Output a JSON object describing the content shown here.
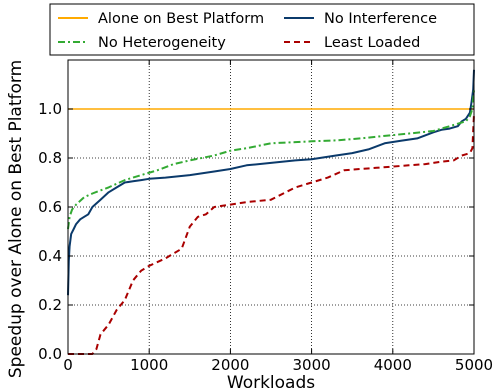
{
  "chart_data": {
    "type": "line",
    "title": "",
    "xlabel": "Workloads",
    "ylabel": "Speedup over Alone on Best Platform",
    "xlim": [
      0,
      5000
    ],
    "ylim": [
      0.0,
      1.2
    ],
    "xticks": [
      0,
      1000,
      2000,
      3000,
      4000,
      5000
    ],
    "yticks": [
      0.0,
      0.2,
      0.4,
      0.6,
      0.8,
      1.0
    ],
    "ytick_labels": [
      "0.0",
      "0.2",
      "0.4",
      "0.6",
      "0.8",
      "1.0"
    ],
    "grid": true,
    "legend": {
      "position": "top-center",
      "columns": 2
    },
    "series": [
      {
        "name": "Alone on Best Platform",
        "color": "#ffaa00",
        "style": "solid",
        "x": [
          0,
          5000
        ],
        "y": [
          1.0,
          1.0
        ]
      },
      {
        "name": "No Interference",
        "color": "#0b3a6b",
        "style": "solid",
        "x": [
          0,
          10,
          20,
          40,
          70,
          100,
          150,
          200,
          250,
          300,
          400,
          500,
          600,
          700,
          800,
          900,
          1000,
          1200,
          1500,
          1800,
          2000,
          2200,
          2500,
          2800,
          3000,
          3300,
          3500,
          3700,
          3900,
          4100,
          4300,
          4500,
          4600,
          4700,
          4800,
          4850,
          4900,
          4950,
          4970,
          4990,
          5000
        ],
        "y": [
          0.24,
          0.38,
          0.44,
          0.49,
          0.51,
          0.53,
          0.55,
          0.56,
          0.57,
          0.6,
          0.63,
          0.66,
          0.68,
          0.7,
          0.705,
          0.71,
          0.715,
          0.72,
          0.73,
          0.745,
          0.755,
          0.77,
          0.78,
          0.79,
          0.795,
          0.81,
          0.82,
          0.835,
          0.86,
          0.87,
          0.88,
          0.905,
          0.915,
          0.92,
          0.93,
          0.95,
          0.96,
          0.985,
          1.03,
          1.08,
          1.16
        ]
      },
      {
        "name": "No Heterogeneity",
        "color": "#33aa33",
        "style": "dashdot",
        "x": [
          0,
          20,
          50,
          100,
          200,
          300,
          500,
          700,
          900,
          1100,
          1300,
          1500,
          1800,
          2000,
          2200,
          2500,
          2800,
          3000,
          3300,
          3600,
          3900,
          4200,
          4500,
          4700,
          4800,
          4900,
          4950,
          4980,
          5000
        ],
        "y": [
          0.51,
          0.56,
          0.59,
          0.61,
          0.64,
          0.655,
          0.68,
          0.71,
          0.73,
          0.75,
          0.775,
          0.79,
          0.81,
          0.83,
          0.84,
          0.86,
          0.865,
          0.868,
          0.872,
          0.88,
          0.89,
          0.9,
          0.91,
          0.93,
          0.94,
          0.95,
          0.97,
          1.0,
          1.08
        ]
      },
      {
        "name": "Least Loaded",
        "color": "#aa0000",
        "style": "dashed",
        "x": [
          0,
          300,
          350,
          400,
          500,
          600,
          700,
          800,
          900,
          1000,
          1200,
          1400,
          1500,
          1600,
          1700,
          1800,
          2000,
          2200,
          2500,
          2800,
          3000,
          3200,
          3400,
          3600,
          3800,
          4000,
          4200,
          4400,
          4600,
          4750,
          4850,
          4900,
          4950,
          4980,
          5000
        ],
        "y": [
          0.0,
          0.0,
          0.02,
          0.08,
          0.12,
          0.18,
          0.22,
          0.3,
          0.34,
          0.36,
          0.39,
          0.43,
          0.52,
          0.56,
          0.57,
          0.6,
          0.61,
          0.62,
          0.63,
          0.68,
          0.7,
          0.72,
          0.75,
          0.755,
          0.76,
          0.765,
          0.77,
          0.775,
          0.785,
          0.79,
          0.81,
          0.815,
          0.82,
          0.84,
          0.98
        ]
      }
    ]
  }
}
